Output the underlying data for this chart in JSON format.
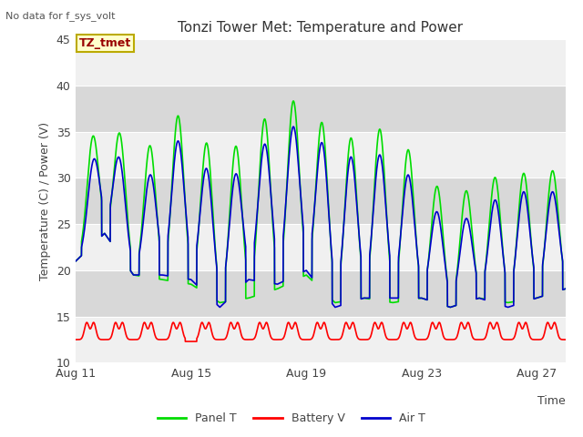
{
  "title": "Tonzi Tower Met: Temperature and Power",
  "top_left_text": "No data for f_sys_volt",
  "ylabel": "Temperature (C) / Power (V)",
  "xlabel": "Time",
  "legend_entries": [
    "Panel T",
    "Battery V",
    "Air T"
  ],
  "tag_label": "TZ_tmet",
  "tag_bg": "#ffffcc",
  "tag_border": "#bbaa00",
  "tag_text_color": "#990000",
  "ylim": [
    10,
    45
  ],
  "yticks": [
    10,
    15,
    20,
    25,
    30,
    35,
    40,
    45
  ],
  "xtick_positions": [
    0,
    4,
    8,
    12,
    16
  ],
  "xtick_labels": [
    "Aug 11",
    "Aug 15",
    "Aug 19",
    "Aug 23",
    "Aug 27"
  ],
  "background_color": "#ffffff",
  "plot_bg_light": "#f0f0f0",
  "plot_bg_dark": "#d8d8d8",
  "grid_color": "#ffffff",
  "panel_t_color": "#00dd00",
  "battery_v_color": "#ff0000",
  "air_t_color": "#0000cc",
  "line_width": 1.2,
  "xlim_start": 0,
  "xlim_end": 17
}
